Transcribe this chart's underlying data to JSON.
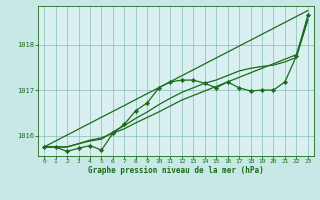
{
  "background_color": "#c8e8e8",
  "plot_bg_color": "#daf0f0",
  "grid_color": "#88bbbb",
  "line_color": "#1a6b1a",
  "xlabel": "Graphe pression niveau de la mer (hPa)",
  "xlim": [
    -0.5,
    23.5
  ],
  "ylim": [
    1015.55,
    1018.85
  ],
  "yticks": [
    1016,
    1017,
    1018
  ],
  "xticks": [
    0,
    1,
    2,
    3,
    4,
    5,
    6,
    7,
    8,
    9,
    10,
    11,
    12,
    13,
    14,
    15,
    16,
    17,
    18,
    19,
    20,
    21,
    22,
    23
  ],
  "series": [
    {
      "x": [
        0,
        1,
        2,
        3,
        4,
        5,
        6,
        7,
        8,
        9,
        10,
        11,
        12,
        13,
        14,
        15,
        16,
        17,
        18,
        19,
        20,
        21,
        22,
        23
      ],
      "y": [
        1015.75,
        1015.75,
        1015.65,
        1015.72,
        1015.78,
        1015.68,
        1016.05,
        1016.25,
        1016.55,
        1016.72,
        1017.05,
        1017.18,
        1017.22,
        1017.22,
        1017.15,
        1017.05,
        1017.18,
        1017.05,
        1016.98,
        1017.0,
        1017.0,
        1017.18,
        1017.75,
        1018.65
      ],
      "marker": "D",
      "markersize": 2.2,
      "linewidth": 0.9
    },
    {
      "x": [
        0,
        1,
        2,
        3,
        4,
        5,
        6,
        7,
        8,
        9,
        10,
        11,
        12,
        13,
        14,
        15,
        16,
        17,
        18,
        19,
        20,
        21,
        22,
        23
      ],
      "y": [
        1015.75,
        1015.75,
        1015.75,
        1015.82,
        1015.88,
        1015.92,
        1016.08,
        1016.22,
        1016.38,
        1016.52,
        1016.68,
        1016.82,
        1016.95,
        1017.05,
        1017.15,
        1017.22,
        1017.32,
        1017.42,
        1017.48,
        1017.52,
        1017.55,
        1017.62,
        1017.72,
        1018.55
      ],
      "marker": null,
      "markersize": 0,
      "linewidth": 0.9
    },
    {
      "x": [
        0,
        1,
        2,
        3,
        4,
        5,
        6,
        7,
        8,
        9,
        10,
        11,
        12,
        13,
        14,
        15,
        16,
        17,
        18,
        19,
        20,
        21,
        22,
        23
      ],
      "y": [
        1015.75,
        1015.75,
        1015.75,
        1015.82,
        1015.9,
        1015.95,
        1016.05,
        1016.15,
        1016.28,
        1016.4,
        1016.52,
        1016.65,
        1016.78,
        1016.88,
        1016.98,
        1017.08,
        1017.18,
        1017.28,
        1017.38,
        1017.48,
        1017.58,
        1017.68,
        1017.78,
        1018.55
      ],
      "marker": null,
      "markersize": 0,
      "linewidth": 0.9
    },
    {
      "x": [
        0,
        23
      ],
      "y": [
        1015.75,
        1018.75
      ],
      "marker": null,
      "markersize": 0,
      "linewidth": 0.9
    }
  ]
}
